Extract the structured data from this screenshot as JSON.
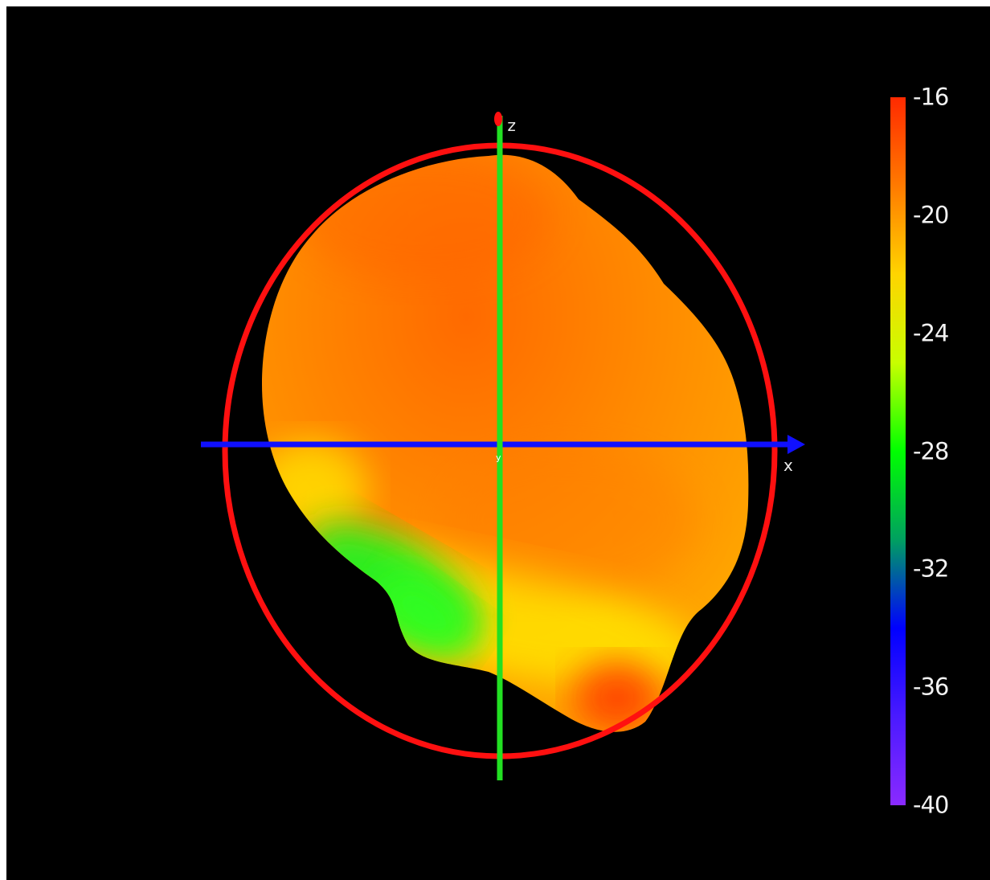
{
  "axes": {
    "x_label": "x",
    "z_label": "z",
    "x_color": "#1010ff",
    "z_color": "#22e022",
    "origin_marker": "y-axis-endpoint"
  },
  "reference_circle": {
    "color": "#ff1010"
  },
  "colorbar": {
    "min": -40,
    "max": -16,
    "ticks": [
      "-16",
      "-20",
      "-24",
      "-28",
      "-32",
      "-36",
      "-40"
    ],
    "colors": [
      "#ff2a00",
      "#ff7a00",
      "#ffd400",
      "#c8ff00",
      "#00ff00",
      "#00a060",
      "#0000ff",
      "#4a1aff",
      "#8a2aff"
    ]
  },
  "surface": {
    "dominant_color": "#ff8800",
    "low_region_color": "#22ee22",
    "highlight_color": "#ffff00"
  }
}
